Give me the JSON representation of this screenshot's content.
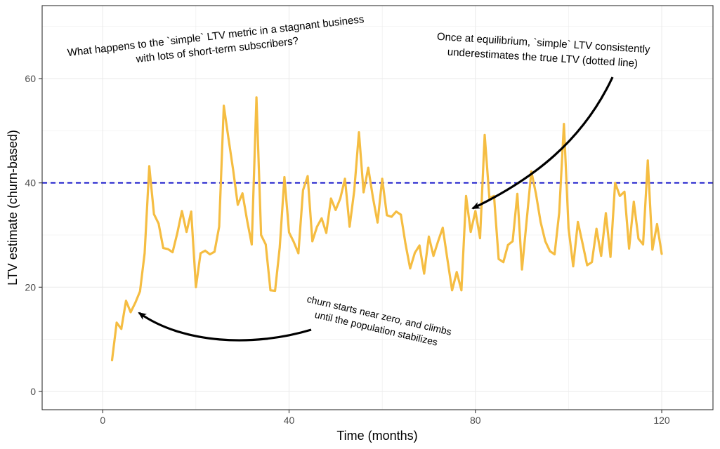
{
  "chart_data": {
    "type": "line",
    "title": "",
    "xlabel": "Time (months)",
    "ylabel": "LTV estimate (churn-based)",
    "xlim": [
      -13,
      131
    ],
    "ylim": [
      -3.5,
      74
    ],
    "x_ticks": [
      0,
      40,
      80,
      120
    ],
    "y_ticks": [
      0,
      20,
      40,
      60
    ],
    "grid": true,
    "series": [
      {
        "color": "#f5bd42",
        "x": [
          2,
          3,
          4,
          5,
          6,
          7,
          8,
          9,
          10,
          11,
          12,
          13,
          14,
          15,
          16,
          17,
          18,
          19,
          20,
          21,
          22,
          23,
          24,
          25,
          26,
          27,
          28,
          29,
          30,
          31,
          32,
          33,
          34,
          35,
          36,
          37,
          38,
          39,
          40,
          41,
          42,
          43,
          44,
          45,
          46,
          47,
          48,
          49,
          50,
          51,
          52,
          53,
          54,
          55,
          56,
          57,
          58,
          59,
          60,
          61,
          62,
          63,
          64,
          65,
          66,
          67,
          68,
          69,
          70,
          71,
          72,
          73,
          74,
          75,
          76,
          77,
          78,
          79,
          80,
          81,
          82,
          83,
          84,
          85,
          86,
          87,
          88,
          89,
          90,
          91,
          92,
          93,
          94,
          95,
          96,
          97,
          98,
          99,
          100,
          101,
          102,
          103,
          104,
          105,
          106,
          107,
          108,
          109,
          110,
          111,
          112,
          113,
          114,
          115,
          116,
          117,
          118,
          119,
          120
        ],
        "values": [
          6,
          13.2,
          12,
          17.4,
          15.2,
          17,
          19.2,
          26.5,
          43.2,
          34,
          32.2,
          27.5,
          27.3,
          26.7,
          30.3,
          34.6,
          30.6,
          34.5,
          20,
          26.5,
          27,
          26.3,
          26.8,
          31.6,
          54.8,
          48.5,
          42.5,
          35.8,
          38,
          32.8,
          28.2,
          56.4,
          30,
          28.2,
          19.4,
          19.3,
          27.6,
          41.1,
          30.5,
          28.7,
          26.5,
          38.6,
          41.3,
          28.8,
          31.6,
          33.2,
          30.4,
          37,
          34.8,
          37,
          40.8,
          31.6,
          38.5,
          49.7,
          38.2,
          42.9,
          37.2,
          32.4,
          40.8,
          33.8,
          33.5,
          34.5,
          33.9,
          28.3,
          23.6,
          26.6,
          28,
          22.6,
          29.7,
          26,
          28.8,
          31.4,
          25.3,
          19.4,
          22.9,
          19.4,
          37.5,
          30.6,
          34.6,
          29.4,
          49.2,
          37.1,
          37.5,
          25.4,
          24.8,
          28.1,
          28.8,
          37.9,
          23.4,
          32.7,
          42.2,
          37.9,
          32.5,
          28.8,
          26.9,
          26.3,
          34.3,
          51.3,
          31.3,
          24,
          32.5,
          28.4,
          24.2,
          24.8,
          31.2,
          26,
          34.2,
          25.8,
          40,
          37.5,
          38.3,
          27.4,
          36.4,
          29.3,
          28.2,
          44.3,
          27.2,
          32.1,
          26.4
        ]
      }
    ],
    "reference_line": {
      "y": 40,
      "color": "#0a0ac8",
      "style": "dashed"
    },
    "annotations": {
      "question": [
        "What happens to the `simple` LTV metric in a stagnant business",
        "with lots of short-term subscribers?"
      ],
      "equilibrium": [
        "Once at equilibrium, `simple` LTV consistently",
        "underestimates the true LTV (dotted line)"
      ],
      "churn": [
        "churn starts near zero, and climbs",
        "until the population stabilizes"
      ]
    }
  }
}
